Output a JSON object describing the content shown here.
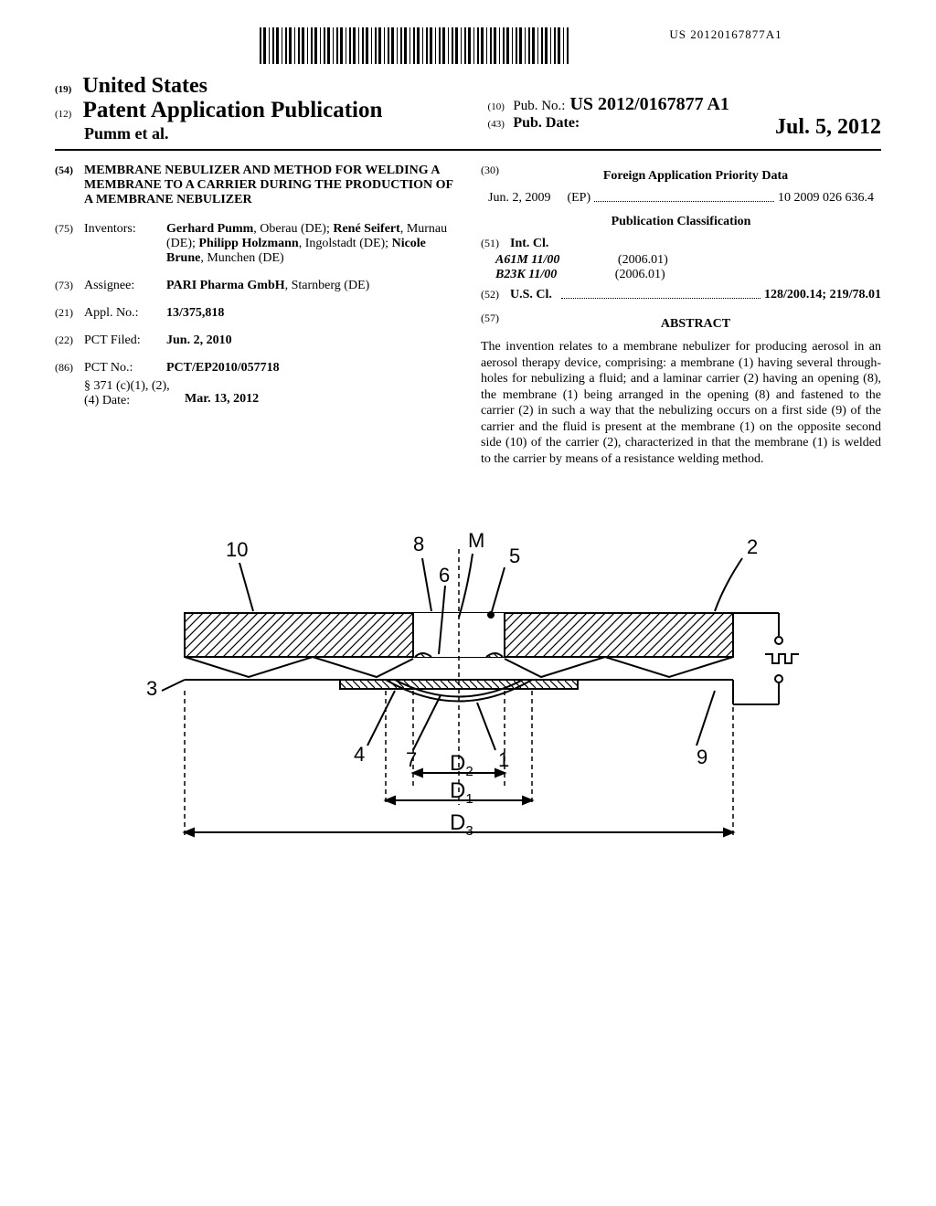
{
  "barcode_text": "US 20120167877A1",
  "header": {
    "country_code": "(19)",
    "country": "United States",
    "pub_type_code": "(12)",
    "pub_type": "Patent Application Publication",
    "authors": "Pumm et al.",
    "pub_no_code": "(10)",
    "pub_no_label": "Pub. No.:",
    "pub_no": "US 2012/0167877 A1",
    "pub_date_code": "(43)",
    "pub_date_label": "Pub. Date:",
    "pub_date": "Jul. 5, 2012"
  },
  "left": {
    "title_code": "(54)",
    "title": "MEMBRANE NEBULIZER AND METHOD FOR WELDING A MEMBRANE TO A CARRIER DURING THE PRODUCTION OF A MEMBRANE NEBULIZER",
    "inventors_code": "(75)",
    "inventors_label": "Inventors:",
    "inventors_html": "<b>Gerhard Pumm</b>, Oberau (DE); <b>René Seifert</b>, Murnau (DE); <b>Philipp Holzmann</b>, Ingolstadt (DE); <b>Nicole Brune</b>, Munchen (DE)",
    "assignee_code": "(73)",
    "assignee_label": "Assignee:",
    "assignee_html": "<b>PARI Pharma GmbH</b>, Starnberg (DE)",
    "appl_code": "(21)",
    "appl_label": "Appl. No.:",
    "appl_value": "13/375,818",
    "pct_filed_code": "(22)",
    "pct_filed_label": "PCT Filed:",
    "pct_filed_value": "Jun. 2, 2010",
    "pct_no_code": "(86)",
    "pct_no_label": "PCT No.:",
    "pct_no_value": "PCT/EP2010/057718",
    "s371_label": "§ 371 (c)(1), (2), (4) Date:",
    "s371_value": "Mar. 13, 2012"
  },
  "right": {
    "foreign_code": "(30)",
    "foreign_label": "Foreign Application Priority Data",
    "priority_date": "Jun. 2, 2009",
    "priority_cc": "(EP)",
    "priority_num": "10 2009 026 636.4",
    "class_header": "Publication Classification",
    "intcl_code": "(51)",
    "intcl_label": "Int. Cl.",
    "intcl_1": "A61M 11/00",
    "intcl_1_date": "(2006.01)",
    "intcl_2": "B23K 11/00",
    "intcl_2_date": "(2006.01)",
    "uscl_code": "(52)",
    "uscl_label": "U.S. Cl.",
    "uscl_value": "128/200.14; 219/78.01",
    "abstract_code": "(57)",
    "abstract_label": "ABSTRACT",
    "abstract_text": "The invention relates to a membrane nebulizer for producing aerosol in an aerosol therapy device, comprising: a membrane (1) having several through-holes for nebulizing a fluid; and a laminar carrier (2) having an opening (8), the membrane (1) being arranged in the opening (8) and fastened to the carrier (2) in such a way that the nebulizing occurs on a first side (9) of the carrier and the fluid is present at the membrane (1) on the opposite second side (10) of the carrier (2), characterized in that the membrane (1) is welded to the carrier by means of a resistance welding method."
  },
  "figure": {
    "labels": {
      "l10": "10",
      "l8": "8",
      "lM": "M",
      "l5": "5",
      "l2": "2",
      "l6": "6",
      "l3": "3",
      "l4": "4",
      "l7": "7",
      "l1": "1",
      "l9": "9",
      "D1": "D",
      "D2": "D",
      "D3": "D",
      "s1": "1",
      "s2": "2",
      "s3": "3"
    },
    "colors": {
      "stroke": "#000000",
      "fill": "#ffffff",
      "hatch": "#000000"
    },
    "line_width": 2,
    "font_family": "Arial, Helvetica, sans-serif",
    "font_size_label": 22,
    "font_size_dim": 24
  }
}
